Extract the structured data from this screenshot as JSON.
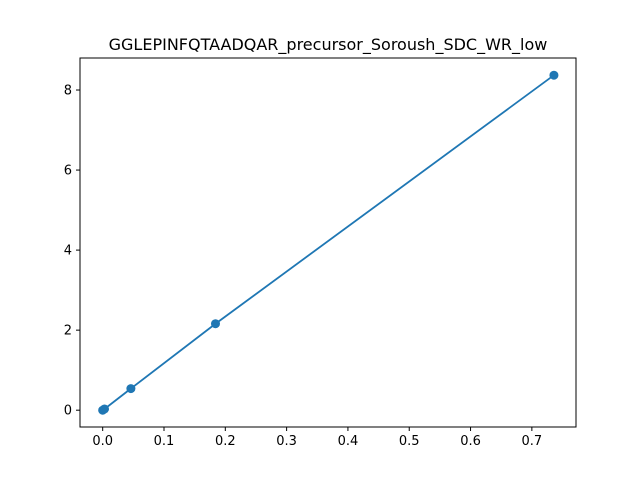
{
  "chart_data": {
    "type": "line",
    "title": "GGLEPINFQTAADQAR_precursor_Soroush_SDC_WR_low",
    "xlabel": "",
    "ylabel": "",
    "xlim": [
      -0.037,
      0.772
    ],
    "ylim": [
      -0.42,
      8.8
    ],
    "x_ticks": [
      0.0,
      0.1,
      0.2,
      0.3,
      0.4,
      0.5,
      0.6,
      0.7
    ],
    "x_tick_labels": [
      "0.0",
      "0.1",
      "0.2",
      "0.3",
      "0.4",
      "0.5",
      "0.6",
      "0.7"
    ],
    "y_ticks": [
      0,
      2,
      4,
      6,
      8
    ],
    "y_tick_labels": [
      "0",
      "2",
      "4",
      "6",
      "8"
    ],
    "grid": false,
    "legend": "none",
    "series": [
      {
        "color": "#1f77b4",
        "marker": "circle",
        "points": [
          {
            "x": 0.0,
            "y": 0.0
          },
          {
            "x": 0.003,
            "y": 0.03
          },
          {
            "x": 0.046,
            "y": 0.54
          },
          {
            "x": 0.184,
            "y": 2.16
          },
          {
            "x": 0.736,
            "y": 8.37
          }
        ]
      }
    ]
  }
}
